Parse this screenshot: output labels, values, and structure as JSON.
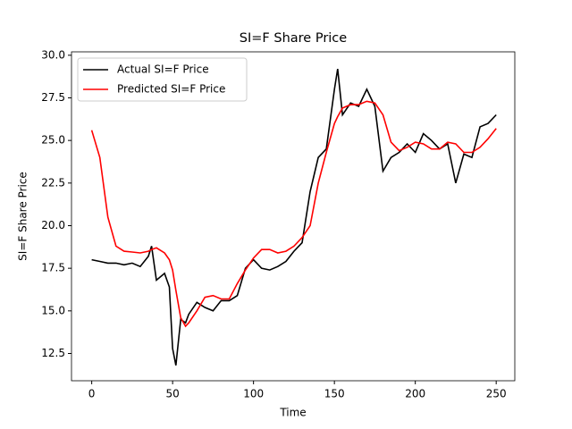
{
  "chart_data": {
    "type": "line",
    "title": "SI=F Share Price",
    "xlabel": "Time",
    "ylabel": "SI=F Share Price",
    "x": [
      0,
      5,
      10,
      15,
      20,
      25,
      30,
      35,
      37,
      40,
      45,
      48,
      50,
      52,
      55,
      58,
      60,
      65,
      70,
      75,
      80,
      85,
      90,
      95,
      100,
      105,
      110,
      115,
      120,
      125,
      130,
      135,
      140,
      145,
      150,
      152,
      155,
      160,
      165,
      170,
      175,
      180,
      185,
      190,
      195,
      200,
      205,
      210,
      215,
      220,
      225,
      230,
      235,
      240,
      245,
      250
    ],
    "series": [
      {
        "name": "Actual SI=F Price",
        "color": "#000000",
        "values": [
          18.0,
          17.9,
          17.8,
          17.8,
          17.7,
          17.8,
          17.6,
          18.2,
          18.8,
          16.8,
          17.2,
          16.4,
          12.8,
          11.8,
          14.5,
          14.3,
          14.8,
          15.5,
          15.2,
          15.0,
          15.6,
          15.6,
          15.9,
          17.5,
          18.0,
          17.5,
          17.4,
          17.6,
          17.9,
          18.5,
          19.0,
          22.0,
          24.0,
          24.5,
          28.0,
          29.2,
          26.5,
          27.2,
          27.0,
          28.0,
          27.0,
          23.2,
          24.0,
          24.3,
          24.8,
          24.3,
          25.4,
          25.0,
          24.5,
          24.8,
          22.5,
          24.2,
          24.0,
          25.8,
          26.0,
          26.5
        ]
      },
      {
        "name": "Predicted SI=F Price",
        "color": "#ff0000",
        "values": [
          25.6,
          24.0,
          20.5,
          18.8,
          18.5,
          18.45,
          18.4,
          18.5,
          18.6,
          18.7,
          18.4,
          18.0,
          17.4,
          16.2,
          14.6,
          14.1,
          14.3,
          15.0,
          15.8,
          15.9,
          15.7,
          15.7,
          16.6,
          17.4,
          18.1,
          18.6,
          18.6,
          18.4,
          18.5,
          18.8,
          19.3,
          20.0,
          22.5,
          24.3,
          26.0,
          26.4,
          26.9,
          27.1,
          27.1,
          27.3,
          27.2,
          26.5,
          24.9,
          24.4,
          24.6,
          24.9,
          24.8,
          24.5,
          24.5,
          24.9,
          24.8,
          24.3,
          24.3,
          24.6,
          25.1,
          25.7
        ]
      }
    ],
    "xlim": [
      -12.5,
      261.5
    ],
    "xticks": [
      0,
      50,
      100,
      150,
      200,
      250
    ],
    "ylim": [
      10.9,
      30.2
    ],
    "yticks": [
      12.5,
      {
        "value": 15,
        "label": "15.0"
      },
      17.5,
      {
        "value": 20,
        "label": "20.0"
      },
      22.5,
      {
        "value": 25,
        "label": "25.0"
      },
      27.5,
      {
        "value": 30,
        "label": "30.0"
      }
    ],
    "legend": "upper left"
  }
}
